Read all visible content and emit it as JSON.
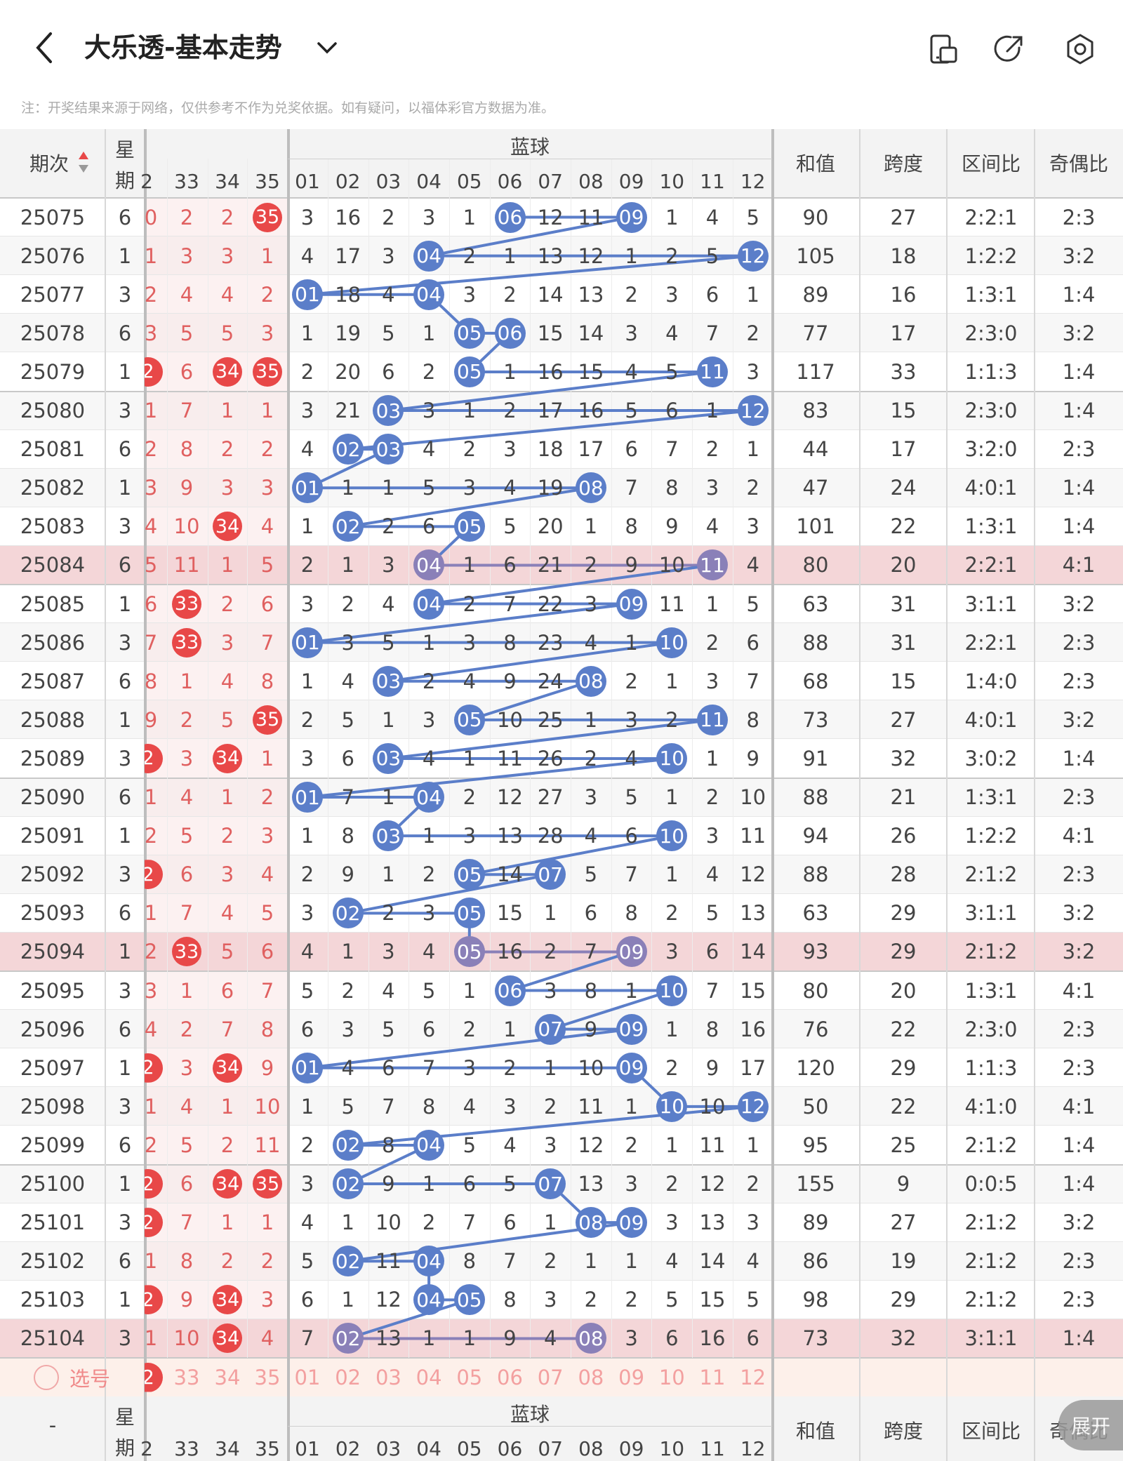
{
  "header": {
    "title": "大乐透-基本走势",
    "back_icon": "chevron-left-icon",
    "dropdown_icon": "chevron-down-icon",
    "icons": [
      "phone-layout-icon",
      "share-icon",
      "settings-icon"
    ]
  },
  "note": "注：开奖结果来源于网络，仅供参考不作为兑奖依据。如有疑问，以福体彩官方数据为准。",
  "table": {
    "col_issue": "期次",
    "col_weekday_1": "星",
    "col_weekday_2": "期",
    "front_cols": [
      "2",
      "33",
      "34",
      "35"
    ],
    "blue_title": "蓝球",
    "blue_cols": [
      "01",
      "02",
      "03",
      "04",
      "05",
      "06",
      "07",
      "08",
      "09",
      "10",
      "11",
      "12"
    ],
    "stat_cols": [
      "和值",
      "跨度",
      "区间比",
      "奇偶比"
    ],
    "rows": [
      {
        "issue": "25075",
        "wd": "6",
        "front": [
          "0",
          "2",
          "2",
          "35"
        ],
        "fh": [
          3
        ],
        "blue": [
          "3",
          "16",
          "2",
          "3",
          "1",
          "06",
          "12",
          "11",
          "09",
          "1",
          "4",
          "5"
        ],
        "hits": [
          5,
          8
        ],
        "sum": "90",
        "span": "27",
        "zone": "2:2:1",
        "oe": "2:3"
      },
      {
        "issue": "25076",
        "wd": "1",
        "front": [
          "1",
          "3",
          "3",
          "1"
        ],
        "fh": [],
        "blue": [
          "4",
          "17",
          "3",
          "04",
          "2",
          "1",
          "13",
          "12",
          "1",
          "2",
          "5",
          "12"
        ],
        "hits": [
          3,
          11
        ],
        "sum": "105",
        "span": "18",
        "zone": "1:2:2",
        "oe": "3:2"
      },
      {
        "issue": "25077",
        "wd": "3",
        "front": [
          "2",
          "4",
          "4",
          "2"
        ],
        "fh": [],
        "blue": [
          "01",
          "18",
          "4",
          "04",
          "3",
          "2",
          "14",
          "13",
          "2",
          "3",
          "6",
          "1"
        ],
        "hits": [
          0,
          3
        ],
        "sum": "89",
        "span": "16",
        "zone": "1:3:1",
        "oe": "1:4"
      },
      {
        "issue": "25078",
        "wd": "6",
        "front": [
          "3",
          "5",
          "5",
          "3"
        ],
        "fh": [],
        "blue": [
          "1",
          "19",
          "5",
          "1",
          "05",
          "06",
          "15",
          "14",
          "3",
          "4",
          "7",
          "2"
        ],
        "hits": [
          4,
          5
        ],
        "sum": "77",
        "span": "17",
        "zone": "2:3:0",
        "oe": "3:2"
      },
      {
        "issue": "25079",
        "wd": "1",
        "front": [
          "2",
          "6",
          "34",
          "35"
        ],
        "fh": [
          0,
          2,
          3
        ],
        "blue": [
          "2",
          "20",
          "6",
          "2",
          "05",
          "1",
          "16",
          "15",
          "4",
          "5",
          "11",
          "3"
        ],
        "hits": [
          4,
          10
        ],
        "sum": "117",
        "span": "33",
        "zone": "1:1:3",
        "oe": "1:4"
      },
      {
        "issue": "25080",
        "wd": "3",
        "front": [
          "1",
          "7",
          "1",
          "1"
        ],
        "fh": [],
        "blue": [
          "3",
          "21",
          "03",
          "3",
          "1",
          "2",
          "17",
          "16",
          "5",
          "6",
          "1",
          "12"
        ],
        "hits": [
          2,
          11
        ],
        "sum": "83",
        "span": "15",
        "zone": "2:3:0",
        "oe": "1:4"
      },
      {
        "issue": "25081",
        "wd": "6",
        "front": [
          "2",
          "8",
          "2",
          "2"
        ],
        "fh": [],
        "blue": [
          "4",
          "02",
          "03",
          "4",
          "2",
          "3",
          "18",
          "17",
          "6",
          "7",
          "2",
          "1"
        ],
        "hits": [
          1,
          2
        ],
        "sum": "44",
        "span": "17",
        "zone": "3:2:0",
        "oe": "2:3"
      },
      {
        "issue": "25082",
        "wd": "1",
        "front": [
          "3",
          "9",
          "3",
          "3"
        ],
        "fh": [],
        "blue": [
          "01",
          "1",
          "1",
          "5",
          "3",
          "4",
          "19",
          "08",
          "7",
          "8",
          "3",
          "2"
        ],
        "hits": [
          0,
          7
        ],
        "sum": "47",
        "span": "24",
        "zone": "4:0:1",
        "oe": "1:4"
      },
      {
        "issue": "25083",
        "wd": "3",
        "front": [
          "4",
          "10",
          "34",
          "4"
        ],
        "fh": [
          2
        ],
        "blue": [
          "1",
          "02",
          "2",
          "6",
          "05",
          "5",
          "20",
          "1",
          "8",
          "9",
          "4",
          "3"
        ],
        "hits": [
          1,
          4
        ],
        "sum": "101",
        "span": "22",
        "zone": "1:3:1",
        "oe": "1:4"
      },
      {
        "issue": "25084",
        "wd": "6",
        "front": [
          "5",
          "11",
          "1",
          "5"
        ],
        "fh": [],
        "blue": [
          "2",
          "1",
          "3",
          "04",
          "1",
          "6",
          "21",
          "2",
          "9",
          "10",
          "11",
          "4"
        ],
        "hits": [
          3,
          10
        ],
        "sum": "80",
        "span": "20",
        "zone": "2:2:1",
        "oe": "4:1",
        "hl": true
      },
      {
        "issue": "25085",
        "wd": "1",
        "front": [
          "6",
          "33",
          "2",
          "6"
        ],
        "fh": [
          1
        ],
        "blue": [
          "3",
          "2",
          "4",
          "04",
          "2",
          "7",
          "22",
          "3",
          "09",
          "11",
          "1",
          "5"
        ],
        "hits": [
          3,
          8
        ],
        "sum": "63",
        "span": "31",
        "zone": "3:1:1",
        "oe": "3:2"
      },
      {
        "issue": "25086",
        "wd": "3",
        "front": [
          "7",
          "33",
          "3",
          "7"
        ],
        "fh": [
          1
        ],
        "blue": [
          "01",
          "3",
          "5",
          "1",
          "3",
          "8",
          "23",
          "4",
          "1",
          "10",
          "2",
          "6"
        ],
        "hits": [
          0,
          9
        ],
        "sum": "88",
        "span": "31",
        "zone": "2:2:1",
        "oe": "2:3"
      },
      {
        "issue": "25087",
        "wd": "6",
        "front": [
          "8",
          "1",
          "4",
          "8"
        ],
        "fh": [],
        "blue": [
          "1",
          "4",
          "03",
          "2",
          "4",
          "9",
          "24",
          "08",
          "2",
          "1",
          "3",
          "7"
        ],
        "hits": [
          2,
          7
        ],
        "sum": "68",
        "span": "15",
        "zone": "1:4:0",
        "oe": "2:3"
      },
      {
        "issue": "25088",
        "wd": "1",
        "front": [
          "9",
          "2",
          "5",
          "35"
        ],
        "fh": [
          3
        ],
        "blue": [
          "2",
          "5",
          "1",
          "3",
          "05",
          "10",
          "25",
          "1",
          "3",
          "2",
          "11",
          "8"
        ],
        "hits": [
          4,
          10
        ],
        "sum": "73",
        "span": "27",
        "zone": "4:0:1",
        "oe": "3:2"
      },
      {
        "issue": "25089",
        "wd": "3",
        "front": [
          "2",
          "3",
          "34",
          "1"
        ],
        "fh": [
          0,
          2
        ],
        "blue": [
          "3",
          "6",
          "03",
          "4",
          "1",
          "11",
          "26",
          "2",
          "4",
          "10",
          "1",
          "9"
        ],
        "hits": [
          2,
          9
        ],
        "sum": "91",
        "span": "32",
        "zone": "3:0:2",
        "oe": "1:4"
      },
      {
        "issue": "25090",
        "wd": "6",
        "front": [
          "1",
          "4",
          "1",
          "2"
        ],
        "fh": [],
        "blue": [
          "01",
          "7",
          "1",
          "04",
          "2",
          "12",
          "27",
          "3",
          "5",
          "1",
          "2",
          "10"
        ],
        "hits": [
          0,
          3
        ],
        "sum": "88",
        "span": "21",
        "zone": "1:3:1",
        "oe": "2:3"
      },
      {
        "issue": "25091",
        "wd": "1",
        "front": [
          "2",
          "5",
          "2",
          "3"
        ],
        "fh": [],
        "blue": [
          "1",
          "8",
          "03",
          "1",
          "3",
          "13",
          "28",
          "4",
          "6",
          "10",
          "3",
          "11"
        ],
        "hits": [
          2,
          9
        ],
        "sum": "94",
        "span": "26",
        "zone": "1:2:2",
        "oe": "4:1"
      },
      {
        "issue": "25092",
        "wd": "3",
        "front": [
          "2",
          "6",
          "3",
          "4"
        ],
        "fh": [
          0
        ],
        "blue": [
          "2",
          "9",
          "1",
          "2",
          "05",
          "14",
          "07",
          "5",
          "7",
          "1",
          "4",
          "12"
        ],
        "hits": [
          4,
          6
        ],
        "sum": "88",
        "span": "28",
        "zone": "2:1:2",
        "oe": "2:3"
      },
      {
        "issue": "25093",
        "wd": "6",
        "front": [
          "1",
          "7",
          "4",
          "5"
        ],
        "fh": [],
        "blue": [
          "3",
          "02",
          "2",
          "3",
          "05",
          "15",
          "1",
          "6",
          "8",
          "2",
          "5",
          "13"
        ],
        "hits": [
          1,
          4
        ],
        "sum": "63",
        "span": "29",
        "zone": "3:1:1",
        "oe": "3:2"
      },
      {
        "issue": "25094",
        "wd": "1",
        "front": [
          "2",
          "33",
          "5",
          "6"
        ],
        "fh": [
          1
        ],
        "blue": [
          "4",
          "1",
          "3",
          "4",
          "05",
          "16",
          "2",
          "7",
          "09",
          "3",
          "6",
          "14"
        ],
        "hits": [
          4,
          8
        ],
        "sum": "93",
        "span": "29",
        "zone": "2:1:2",
        "oe": "3:2",
        "hl": true
      },
      {
        "issue": "25095",
        "wd": "3",
        "front": [
          "3",
          "1",
          "6",
          "7"
        ],
        "fh": [],
        "blue": [
          "5",
          "2",
          "4",
          "5",
          "1",
          "06",
          "3",
          "8",
          "1",
          "10",
          "7",
          "15"
        ],
        "hits": [
          5,
          9
        ],
        "sum": "80",
        "span": "20",
        "zone": "1:3:1",
        "oe": "4:1"
      },
      {
        "issue": "25096",
        "wd": "6",
        "front": [
          "4",
          "2",
          "7",
          "8"
        ],
        "fh": [],
        "blue": [
          "6",
          "3",
          "5",
          "6",
          "2",
          "1",
          "07",
          "9",
          "09",
          "1",
          "8",
          "16"
        ],
        "hits": [
          6,
          8
        ],
        "sum": "76",
        "span": "22",
        "zone": "2:3:0",
        "oe": "2:3"
      },
      {
        "issue": "25097",
        "wd": "1",
        "front": [
          "2",
          "3",
          "34",
          "9"
        ],
        "fh": [
          0,
          2
        ],
        "blue": [
          "01",
          "4",
          "6",
          "7",
          "3",
          "2",
          "1",
          "10",
          "09",
          "2",
          "9",
          "17"
        ],
        "hits": [
          0,
          8
        ],
        "sum": "120",
        "span": "29",
        "zone": "1:1:3",
        "oe": "2:3"
      },
      {
        "issue": "25098",
        "wd": "3",
        "front": [
          "1",
          "4",
          "1",
          "10"
        ],
        "fh": [],
        "blue": [
          "1",
          "5",
          "7",
          "8",
          "4",
          "3",
          "2",
          "11",
          "1",
          "10",
          "10",
          "12"
        ],
        "hits": [
          9,
          11
        ],
        "sum": "50",
        "span": "22",
        "zone": "4:1:0",
        "oe": "4:1"
      },
      {
        "issue": "25099",
        "wd": "6",
        "front": [
          "2",
          "5",
          "2",
          "11"
        ],
        "fh": [],
        "blue": [
          "2",
          "02",
          "8",
          "04",
          "5",
          "4",
          "3",
          "12",
          "2",
          "1",
          "11",
          "1"
        ],
        "hits": [
          1,
          3
        ],
        "sum": "95",
        "span": "25",
        "zone": "2:1:2",
        "oe": "1:4"
      },
      {
        "issue": "25100",
        "wd": "1",
        "front": [
          "2",
          "6",
          "34",
          "35"
        ],
        "fh": [
          0,
          2,
          3
        ],
        "blue": [
          "3",
          "02",
          "9",
          "1",
          "6",
          "5",
          "07",
          "13",
          "3",
          "2",
          "12",
          "2"
        ],
        "hits": [
          1,
          6
        ],
        "sum": "155",
        "span": "9",
        "zone": "0:0:5",
        "oe": "1:4"
      },
      {
        "issue": "25101",
        "wd": "3",
        "front": [
          "2",
          "7",
          "1",
          "1"
        ],
        "fh": [
          0
        ],
        "blue": [
          "4",
          "1",
          "10",
          "2",
          "7",
          "6",
          "1",
          "08",
          "09",
          "3",
          "13",
          "3"
        ],
        "hits": [
          7,
          8
        ],
        "sum": "89",
        "span": "27",
        "zone": "2:1:2",
        "oe": "3:2"
      },
      {
        "issue": "25102",
        "wd": "6",
        "front": [
          "1",
          "8",
          "2",
          "2"
        ],
        "fh": [],
        "blue": [
          "5",
          "02",
          "11",
          "04",
          "8",
          "7",
          "2",
          "1",
          "1",
          "4",
          "14",
          "4"
        ],
        "hits": [
          1,
          3
        ],
        "sum": "86",
        "span": "19",
        "zone": "2:1:2",
        "oe": "2:3"
      },
      {
        "issue": "25103",
        "wd": "1",
        "front": [
          "2",
          "9",
          "34",
          "3"
        ],
        "fh": [
          0,
          2
        ],
        "blue": [
          "6",
          "1",
          "12",
          "04",
          "05",
          "8",
          "3",
          "2",
          "2",
          "5",
          "15",
          "5"
        ],
        "hits": [
          3,
          4
        ],
        "sum": "98",
        "span": "29",
        "zone": "2:1:2",
        "oe": "2:3"
      },
      {
        "issue": "25104",
        "wd": "3",
        "front": [
          "1",
          "10",
          "34",
          "4"
        ],
        "fh": [
          2
        ],
        "blue": [
          "7",
          "02",
          "13",
          "1",
          "1",
          "9",
          "4",
          "08",
          "3",
          "6",
          "16",
          "6"
        ],
        "hits": [
          1,
          7
        ],
        "sum": "73",
        "span": "32",
        "zone": "3:1:1",
        "oe": "1:4",
        "hl": true
      }
    ],
    "select_label": "选号",
    "select_front": [
      "2",
      "33",
      "34",
      "35"
    ],
    "footer_issue": "-",
    "expand_label": "展开"
  },
  "colors": {
    "blue_ball": "#5b7ec9",
    "red_ball": "#e84848",
    "highlight_row": "#f4d6d8",
    "hl_ball": "#8a80b8",
    "line": "#5b7ec9"
  }
}
